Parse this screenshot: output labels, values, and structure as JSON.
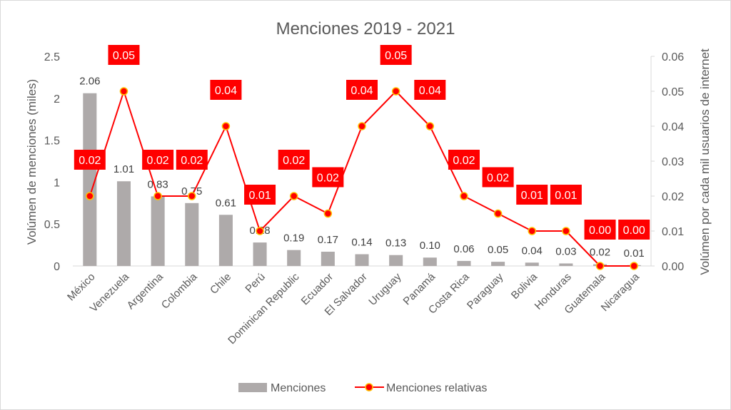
{
  "chart_data": {
    "type": "bar",
    "title": "Menciones 2019 - 2021",
    "ylabel": "Volúmen de menciones (miles)",
    "y2label": "Volúmen por cada mil usuarios de internet",
    "ylim": [
      0,
      2.5
    ],
    "y2lim": [
      0,
      0.06
    ],
    "yticks": [
      "0",
      "0.5",
      "1",
      "1.5",
      "2",
      "2.5"
    ],
    "y2ticks": [
      "0.00",
      "0.01",
      "0.02",
      "0.03",
      "0.04",
      "0.05",
      "0.06"
    ],
    "grid": false,
    "legend": "bottom",
    "categories": [
      "México",
      "Venezuela",
      "Argentina",
      "Colombia",
      "Chile",
      "Perú",
      "Dominican Republic",
      "Ecuador",
      "El Salvador",
      "Uruguay",
      "Panamá",
      "Costa Rica",
      "Paraguay",
      "Bolivia",
      "Honduras",
      "Guatemala",
      "Nicaragua"
    ],
    "series": [
      {
        "name": "Menciones",
        "type": "bar",
        "axis": "left",
        "color": "#aeaaaa",
        "values": [
          2.06,
          1.01,
          0.83,
          0.75,
          0.61,
          0.28,
          0.19,
          0.17,
          0.14,
          0.13,
          0.1,
          0.06,
          0.05,
          0.04,
          0.03,
          0.02,
          0.01
        ],
        "labels": [
          "2.06",
          "1.01",
          "0.83",
          "0.75",
          "0.61",
          "0.28",
          "0.19",
          "0.17",
          "0.14",
          "0.13",
          "0.10",
          "0.06",
          "0.05",
          "0.04",
          "0.03",
          "0.02",
          "0.01"
        ]
      },
      {
        "name": "Menciones relativas",
        "type": "line",
        "axis": "right",
        "color": "#ff0000",
        "values": [
          0.02,
          0.05,
          0.02,
          0.02,
          0.04,
          0.01,
          0.02,
          0.015,
          0.04,
          0.05,
          0.04,
          0.02,
          0.015,
          0.01,
          0.01,
          0.0,
          0.0
        ],
        "labels": [
          "0.02",
          "0.05",
          "0.02",
          "0.02",
          "0.04",
          "0.01",
          "0.02",
          "0.02",
          "0.04",
          "0.05",
          "0.04",
          "0.02",
          "0.02",
          "0.01",
          "0.01",
          "0.00",
          "0.00"
        ]
      }
    ]
  }
}
